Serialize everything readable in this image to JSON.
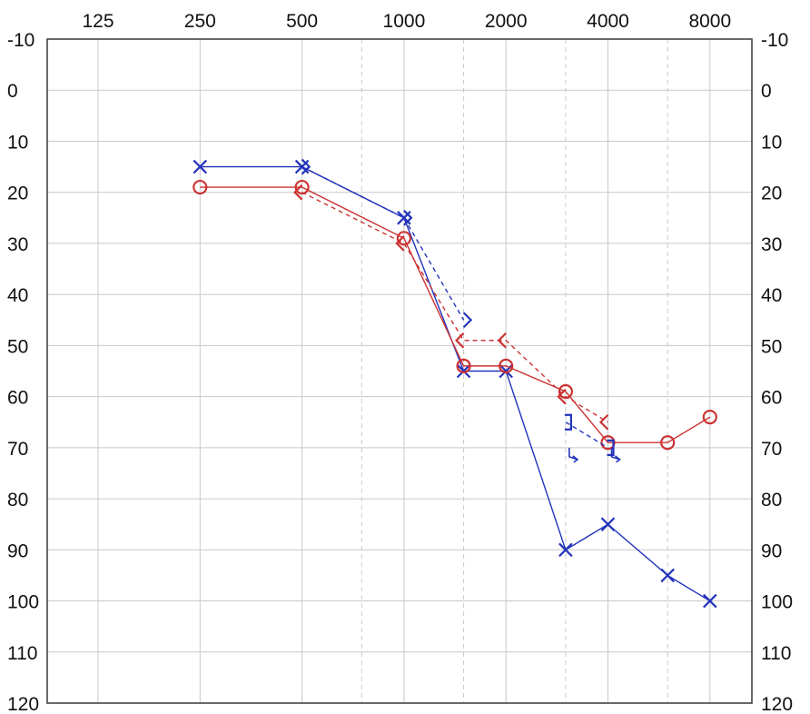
{
  "chart_data": {
    "type": "line",
    "title": "",
    "xlabel": "",
    "ylabel": "",
    "x_scale": "log2",
    "x_ticks": [
      125,
      250,
      500,
      1000,
      2000,
      4000,
      8000
    ],
    "x_tick_labels": [
      "125",
      "250",
      "500",
      "1000",
      "2000",
      "4000",
      "8000"
    ],
    "x_minor_gridlines": [
      750,
      1500,
      3000,
      6000
    ],
    "y_ticks": [
      -10,
      0,
      10,
      20,
      30,
      40,
      50,
      60,
      70,
      80,
      90,
      100,
      110,
      120
    ],
    "y_tick_labels": [
      "-10",
      "0",
      "10",
      "20",
      "30",
      "40",
      "50",
      "60",
      "70",
      "80",
      "90",
      "100",
      "110",
      "120"
    ],
    "ylim": [
      -10,
      120
    ],
    "y_inverted": true,
    "grid": true,
    "series": [
      {
        "marker": "x",
        "color": "#2233bb",
        "line": "solid",
        "points": [
          [
            250,
            15
          ],
          [
            500,
            15
          ],
          [
            1000,
            25
          ],
          [
            1500,
            55
          ],
          [
            2000,
            55
          ],
          [
            3000,
            90
          ],
          [
            4000,
            85
          ],
          [
            6000,
            95
          ],
          [
            8000,
            100
          ]
        ]
      },
      {
        "marker": "o",
        "color": "#cc3333",
        "line": "solid",
        "points": [
          [
            250,
            19
          ],
          [
            500,
            19
          ],
          [
            1000,
            29
          ],
          [
            1500,
            54
          ],
          [
            2000,
            54
          ],
          [
            3000,
            59
          ],
          [
            4000,
            69
          ],
          [
            6000,
            69
          ],
          [
            8000,
            64
          ]
        ]
      },
      {
        "marker": ">",
        "color": "#2233bb",
        "line": "dashed",
        "points": [
          [
            500,
            15
          ],
          [
            1000,
            25
          ],
          [
            1500,
            45
          ]
        ]
      },
      {
        "marker": "<",
        "color": "#cc3333",
        "line": "dashed",
        "points": [
          [
            500,
            20
          ],
          [
            1000,
            30
          ],
          [
            1500,
            49
          ],
          [
            2000,
            49
          ],
          [
            3000,
            60
          ],
          [
            4000,
            65
          ]
        ]
      },
      {
        "marker": "]",
        "color": "#2233bb",
        "line": "dashed",
        "points": [
          [
            3000,
            65
          ],
          [
            4000,
            70
          ]
        ]
      },
      {
        "marker": "no-response-arrow",
        "color": "#2233bb",
        "line": "none",
        "points": [
          [
            3000,
            70
          ],
          [
            4000,
            70
          ]
        ]
      }
    ]
  }
}
